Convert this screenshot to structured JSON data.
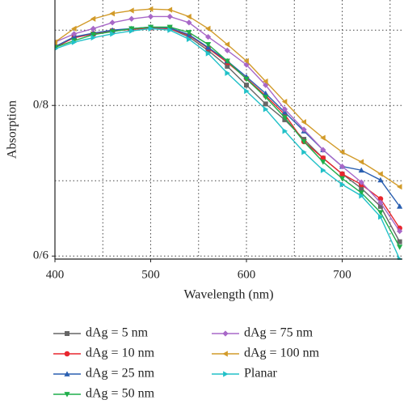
{
  "chart_data": {
    "type": "line",
    "x_label": "Wavelength (nm)",
    "y_label": "Absorption",
    "x": [
      400,
      420,
      440,
      460,
      480,
      500,
      520,
      540,
      560,
      580,
      600,
      620,
      640,
      660,
      680,
      700,
      720,
      740,
      760
    ],
    "xlim": [
      400,
      762
    ],
    "xticks": [
      400,
      500,
      600,
      700
    ],
    "xgrid": [
      450,
      500,
      550,
      600,
      650,
      700,
      750
    ],
    "ylim": [
      0.596,
      0.94
    ],
    "yticks": [
      {
        "value": 0.6,
        "label": "0/6"
      },
      {
        "value": 0.8,
        "label": "0/8"
      }
    ],
    "ygrid": [
      0.6,
      0.7,
      0.8,
      0.9
    ],
    "grid": true,
    "series": [
      {
        "name": "dAg = 5 nm",
        "color": "#666666",
        "marker": "square",
        "values": [
          0.878,
          0.89,
          0.895,
          0.899,
          0.901,
          0.903,
          0.902,
          0.891,
          0.873,
          0.852,
          0.827,
          0.802,
          0.781,
          0.755,
          0.73,
          0.709,
          0.69,
          0.666,
          0.619
        ]
      },
      {
        "name": "dAg = 10 nm",
        "color": "#e8262e",
        "marker": "circle",
        "values": [
          0.877,
          0.89,
          0.895,
          0.899,
          0.901,
          0.903,
          0.902,
          0.893,
          0.876,
          0.857,
          0.836,
          0.813,
          0.788,
          0.752,
          0.73,
          0.709,
          0.695,
          0.676,
          0.637
        ]
      },
      {
        "name": "dAg = 25 nm",
        "color": "#2a5fb0",
        "marker": "triangle-up",
        "values": [
          0.878,
          0.891,
          0.896,
          0.9,
          0.902,
          0.904,
          0.903,
          0.894,
          0.877,
          0.859,
          0.838,
          0.816,
          0.791,
          0.766,
          0.741,
          0.719,
          0.714,
          0.701,
          0.666
        ]
      },
      {
        "name": "dAg = 50 nm",
        "color": "#1fae4a",
        "marker": "triangle-down",
        "values": [
          0.877,
          0.886,
          0.894,
          0.898,
          0.902,
          0.904,
          0.904,
          0.897,
          0.881,
          0.859,
          0.835,
          0.811,
          0.784,
          0.752,
          0.725,
          0.703,
          0.684,
          0.658,
          0.612
        ]
      },
      {
        "name": "dAg = 75 nm",
        "color": "#a868c8",
        "marker": "diamond",
        "values": [
          0.884,
          0.895,
          0.902,
          0.91,
          0.915,
          0.918,
          0.918,
          0.91,
          0.891,
          0.873,
          0.854,
          0.827,
          0.795,
          0.768,
          0.741,
          0.719,
          0.698,
          0.671,
          0.633
        ]
      },
      {
        "name": "dAg = 100 nm",
        "color": "#d29b2a",
        "marker": "triangle-left",
        "values": [
          0.884,
          0.902,
          0.915,
          0.922,
          0.926,
          0.928,
          0.927,
          0.918,
          0.902,
          0.881,
          0.859,
          0.832,
          0.805,
          0.778,
          0.757,
          0.738,
          0.725,
          0.709,
          0.692
        ]
      },
      {
        "name": "Planar",
        "color": "#22c1c8",
        "marker": "triangle-right",
        "values": [
          0.875,
          0.884,
          0.89,
          0.895,
          0.899,
          0.902,
          0.9,
          0.888,
          0.869,
          0.843,
          0.819,
          0.795,
          0.766,
          0.738,
          0.714,
          0.695,
          0.68,
          0.652,
          0.596
        ]
      }
    ]
  }
}
